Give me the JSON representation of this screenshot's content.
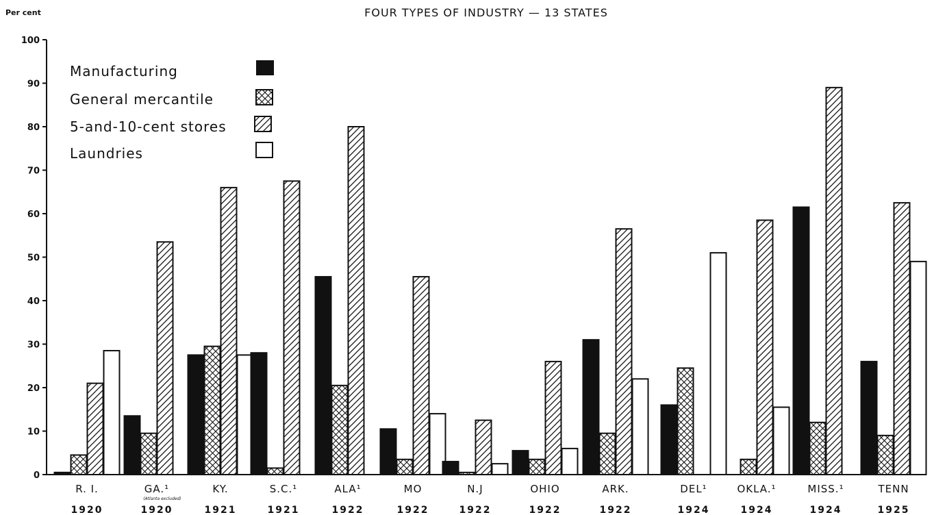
{
  "chart_data": {
    "type": "bar",
    "title": "FOUR TYPES OF INDUSTRY — 13 STATES",
    "ylabel": "Per cent",
    "ylim": [
      0,
      100
    ],
    "yticks": [
      0,
      10,
      20,
      30,
      40,
      50,
      60,
      70,
      80,
      90,
      100
    ],
    "grid": false,
    "legend_position": "top-left",
    "categories": [
      "R. I.",
      "GA.¹",
      "KY.",
      "S.C.¹",
      "ALA¹",
      "MO",
      "N.J",
      "OHIO",
      "ARK.",
      "DEL¹",
      "OKLA.¹",
      "MISS.¹",
      "TENN"
    ],
    "years": [
      "1920",
      "1920",
      "1921",
      "1921",
      "1922",
      "1922",
      "1922",
      "1922",
      "1922",
      "1924",
      "1924",
      "1924",
      "1925"
    ],
    "category_notes": [
      "",
      "(Atlanta excluded)",
      "",
      "",
      "",
      "",
      "",
      "",
      "",
      "",
      "",
      "",
      ""
    ],
    "series": [
      {
        "name": "Manufacturing",
        "pattern": "solid",
        "values": [
          0.5,
          13.5,
          27.5,
          28,
          45.5,
          10.5,
          3,
          5.5,
          31,
          16,
          null,
          61.5,
          26
        ]
      },
      {
        "name": "General mercantile",
        "pattern": "crosshatch",
        "values": [
          4.5,
          9.5,
          29.5,
          1.5,
          20.5,
          3.5,
          0.5,
          3.5,
          9.5,
          24.5,
          3.5,
          12,
          9
        ]
      },
      {
        "name": "5-and-10-cent stores",
        "pattern": "diagonal",
        "values": [
          21,
          53.5,
          66,
          67.5,
          80,
          45.5,
          12.5,
          26,
          56.5,
          null,
          58.5,
          89,
          62.5
        ]
      },
      {
        "name": "Laundries",
        "pattern": "open",
        "values": [
          28.5,
          null,
          27.5,
          null,
          null,
          14,
          2.5,
          6,
          22,
          51,
          15.5,
          null,
          49
        ]
      }
    ],
    "colors": {
      "ink": "#111111",
      "background": "#ffffff"
    }
  }
}
